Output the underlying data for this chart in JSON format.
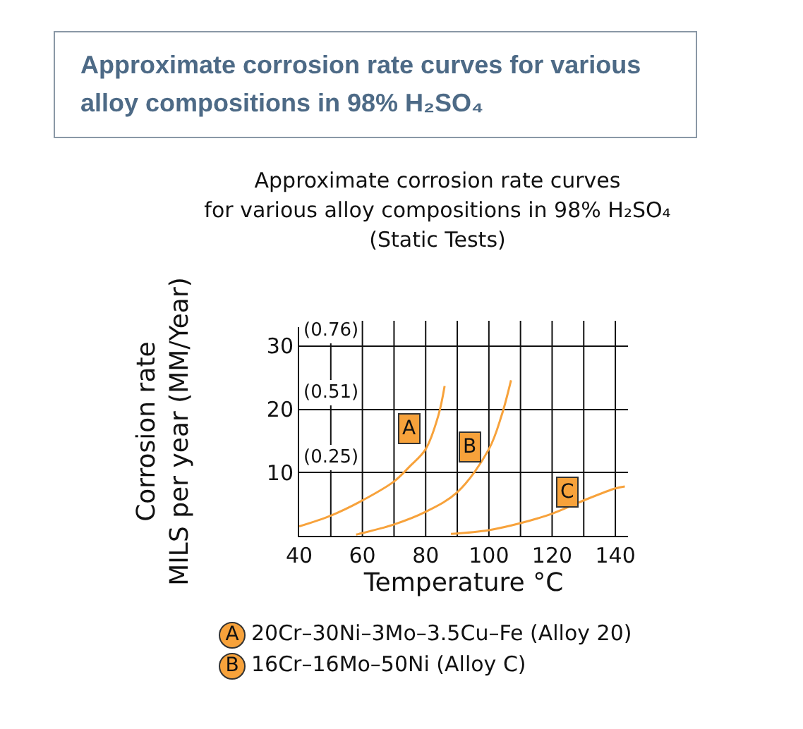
{
  "chart_data": {
    "type": "line",
    "title": "Approximate corrosion rate curves for various alloy compositions in 98% H₂SO₄",
    "subtitle": "Approximate corrosion rate curves\nfor various alloy compositions in 98% H₂SO₄\n(Static Tests)",
    "xlabel": "Temperature °C",
    "ylabel": "Corrosion rate\nMILS per year (MM/Year)",
    "xlim": [
      40,
      144
    ],
    "xticks": [
      40,
      60,
      80,
      100,
      120,
      140
    ],
    "ylim": [
      0,
      33
    ],
    "yticks": [
      10,
      20,
      30
    ],
    "y2lim": [
      0,
      0.838
    ],
    "y2ticks": [
      {
        "value": 0.25,
        "label": "(0.25)"
      },
      {
        "value": 0.51,
        "label": "(0.51)"
      },
      {
        "value": 0.76,
        "label": "(0.76)"
      }
    ],
    "grid": true,
    "marker": "none",
    "line_style": "solid",
    "series": [
      {
        "color": "#f7a23b",
        "x": [
          40,
          50,
          60,
          70,
          75,
          80,
          84,
          86
        ],
        "values": [
          1.5,
          3.2,
          5.6,
          8.6,
          11,
          13.7,
          19,
          23.7
        ]
      },
      {
        "color": "#f7a23b",
        "x": [
          58,
          70,
          80,
          90,
          100,
          104,
          107
        ],
        "values": [
          0.2,
          1.8,
          3.8,
          6.9,
          13.7,
          19,
          24.6
        ]
      },
      {
        "color": "#f7a23b",
        "x": [
          88,
          100,
          110,
          120,
          130,
          140,
          143
        ],
        "values": [
          0.3,
          0.9,
          2,
          3.5,
          5.6,
          7.5,
          7.8
        ]
      }
    ],
    "annotations": [
      {
        "text": "A",
        "x": 75,
        "y": 17
      },
      {
        "text": "B",
        "x": 94,
        "y": 14
      },
      {
        "text": "C",
        "x": 125,
        "y": 7
      },
      "A 20Cr–30Ni–3Mo–3.5Cu–Fe (Alloy 20)",
      "B 16Cr–16Mo–50Ni (Alloy C)"
    ]
  }
}
